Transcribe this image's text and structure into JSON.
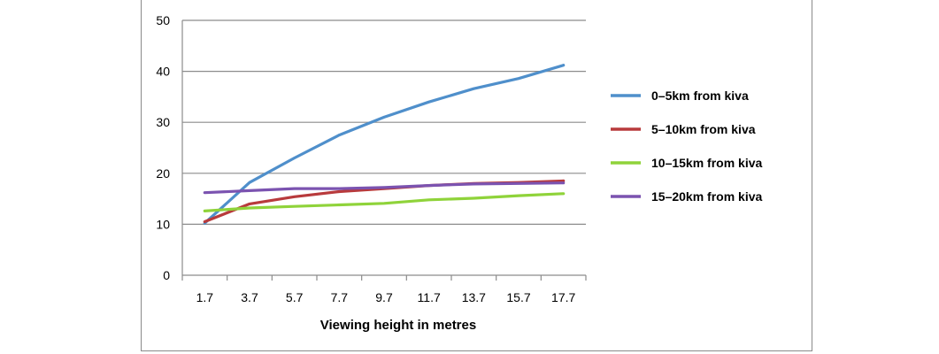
{
  "chart_data": {
    "type": "line",
    "title": "",
    "xlabel": "Viewing height in metres",
    "ylabel": "",
    "categories": [
      "1.7",
      "3.7",
      "5.7",
      "7.7",
      "9.7",
      "11.7",
      "13.7",
      "15.7",
      "17.7"
    ],
    "ylim": [
      0,
      50
    ],
    "yticks": [
      "0",
      "10",
      "20",
      "30",
      "40",
      "50"
    ],
    "grid": true,
    "legend_position": "right",
    "series": [
      {
        "name": "0–5km from kiva",
        "color": "#4f8fcb",
        "values": [
          10.2,
          18.2,
          23,
          27.5,
          31,
          34,
          36.6,
          38.6,
          41.2
        ]
      },
      {
        "name": "5–10km from kiva",
        "color": "#b83a3c",
        "values": [
          10.5,
          14,
          15.4,
          16.4,
          17,
          17.6,
          18,
          18.2,
          18.5
        ]
      },
      {
        "name": "10–15km from kiva",
        "color": "#8fd33a",
        "values": [
          12.6,
          13.2,
          13.5,
          13.8,
          14.1,
          14.8,
          15.1,
          15.6,
          16
        ]
      },
      {
        "name": "15–20km from kiva",
        "color": "#7b53b0",
        "values": [
          16.2,
          16.6,
          17,
          17,
          17.2,
          17.6,
          17.9,
          18,
          18.1
        ]
      }
    ]
  }
}
